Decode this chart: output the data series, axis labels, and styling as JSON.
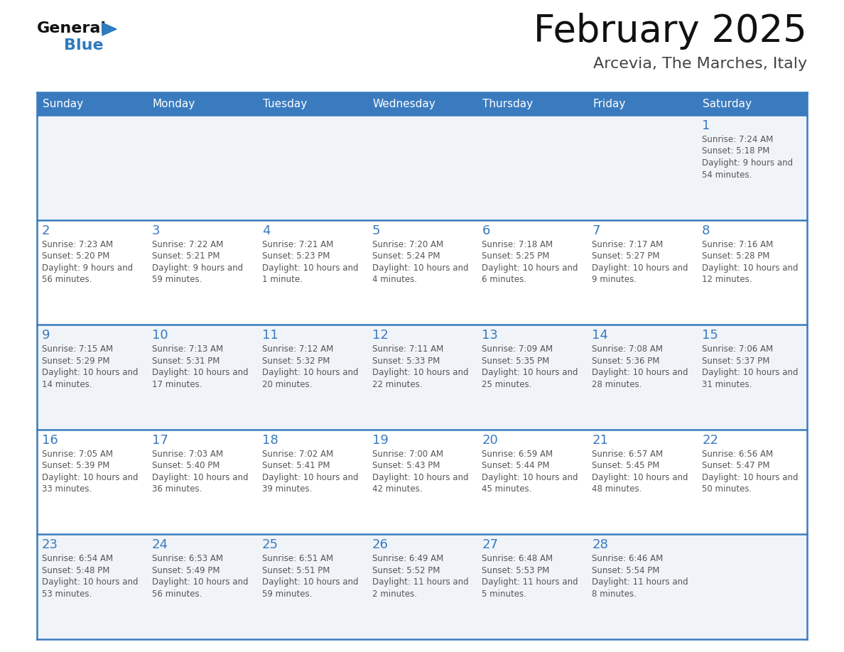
{
  "title": "February 2025",
  "subtitle": "Arcevia, The Marches, Italy",
  "days_of_week": [
    "Sunday",
    "Monday",
    "Tuesday",
    "Wednesday",
    "Thursday",
    "Friday",
    "Saturday"
  ],
  "header_bg_color": "#3a7bbf",
  "header_text_color": "#ffffff",
  "cell_bg_even": "#f0f4f8",
  "cell_bg_odd": "#ffffff",
  "line_color": "#3a7bbf",
  "day_number_color": "#3a7bbf",
  "info_text_color": "#555555",
  "title_color": "#111111",
  "subtitle_color": "#444444",
  "logo_general_color": "#111111",
  "logo_blue_color": "#2e7bbf",
  "calendar_data": [
    {
      "day": 1,
      "col": 6,
      "row": 0,
      "sunrise": "7:24 AM",
      "sunset": "5:18 PM",
      "daylight": "9 hours and 54 minutes."
    },
    {
      "day": 2,
      "col": 0,
      "row": 1,
      "sunrise": "7:23 AM",
      "sunset": "5:20 PM",
      "daylight": "9 hours and 56 minutes."
    },
    {
      "day": 3,
      "col": 1,
      "row": 1,
      "sunrise": "7:22 AM",
      "sunset": "5:21 PM",
      "daylight": "9 hours and 59 minutes."
    },
    {
      "day": 4,
      "col": 2,
      "row": 1,
      "sunrise": "7:21 AM",
      "sunset": "5:23 PM",
      "daylight": "10 hours and 1 minute."
    },
    {
      "day": 5,
      "col": 3,
      "row": 1,
      "sunrise": "7:20 AM",
      "sunset": "5:24 PM",
      "daylight": "10 hours and 4 minutes."
    },
    {
      "day": 6,
      "col": 4,
      "row": 1,
      "sunrise": "7:18 AM",
      "sunset": "5:25 PM",
      "daylight": "10 hours and 6 minutes."
    },
    {
      "day": 7,
      "col": 5,
      "row": 1,
      "sunrise": "7:17 AM",
      "sunset": "5:27 PM",
      "daylight": "10 hours and 9 minutes."
    },
    {
      "day": 8,
      "col": 6,
      "row": 1,
      "sunrise": "7:16 AM",
      "sunset": "5:28 PM",
      "daylight": "10 hours and 12 minutes."
    },
    {
      "day": 9,
      "col": 0,
      "row": 2,
      "sunrise": "7:15 AM",
      "sunset": "5:29 PM",
      "daylight": "10 hours and 14 minutes."
    },
    {
      "day": 10,
      "col": 1,
      "row": 2,
      "sunrise": "7:13 AM",
      "sunset": "5:31 PM",
      "daylight": "10 hours and 17 minutes."
    },
    {
      "day": 11,
      "col": 2,
      "row": 2,
      "sunrise": "7:12 AM",
      "sunset": "5:32 PM",
      "daylight": "10 hours and 20 minutes."
    },
    {
      "day": 12,
      "col": 3,
      "row": 2,
      "sunrise": "7:11 AM",
      "sunset": "5:33 PM",
      "daylight": "10 hours and 22 minutes."
    },
    {
      "day": 13,
      "col": 4,
      "row": 2,
      "sunrise": "7:09 AM",
      "sunset": "5:35 PM",
      "daylight": "10 hours and 25 minutes."
    },
    {
      "day": 14,
      "col": 5,
      "row": 2,
      "sunrise": "7:08 AM",
      "sunset": "5:36 PM",
      "daylight": "10 hours and 28 minutes."
    },
    {
      "day": 15,
      "col": 6,
      "row": 2,
      "sunrise": "7:06 AM",
      "sunset": "5:37 PM",
      "daylight": "10 hours and 31 minutes."
    },
    {
      "day": 16,
      "col": 0,
      "row": 3,
      "sunrise": "7:05 AM",
      "sunset": "5:39 PM",
      "daylight": "10 hours and 33 minutes."
    },
    {
      "day": 17,
      "col": 1,
      "row": 3,
      "sunrise": "7:03 AM",
      "sunset": "5:40 PM",
      "daylight": "10 hours and 36 minutes."
    },
    {
      "day": 18,
      "col": 2,
      "row": 3,
      "sunrise": "7:02 AM",
      "sunset": "5:41 PM",
      "daylight": "10 hours and 39 minutes."
    },
    {
      "day": 19,
      "col": 3,
      "row": 3,
      "sunrise": "7:00 AM",
      "sunset": "5:43 PM",
      "daylight": "10 hours and 42 minutes."
    },
    {
      "day": 20,
      "col": 4,
      "row": 3,
      "sunrise": "6:59 AM",
      "sunset": "5:44 PM",
      "daylight": "10 hours and 45 minutes."
    },
    {
      "day": 21,
      "col": 5,
      "row": 3,
      "sunrise": "6:57 AM",
      "sunset": "5:45 PM",
      "daylight": "10 hours and 48 minutes."
    },
    {
      "day": 22,
      "col": 6,
      "row": 3,
      "sunrise": "6:56 AM",
      "sunset": "5:47 PM",
      "daylight": "10 hours and 50 minutes."
    },
    {
      "day": 23,
      "col": 0,
      "row": 4,
      "sunrise": "6:54 AM",
      "sunset": "5:48 PM",
      "daylight": "10 hours and 53 minutes."
    },
    {
      "day": 24,
      "col": 1,
      "row": 4,
      "sunrise": "6:53 AM",
      "sunset": "5:49 PM",
      "daylight": "10 hours and 56 minutes."
    },
    {
      "day": 25,
      "col": 2,
      "row": 4,
      "sunrise": "6:51 AM",
      "sunset": "5:51 PM",
      "daylight": "10 hours and 59 minutes."
    },
    {
      "day": 26,
      "col": 3,
      "row": 4,
      "sunrise": "6:49 AM",
      "sunset": "5:52 PM",
      "daylight": "11 hours and 2 minutes."
    },
    {
      "day": 27,
      "col": 4,
      "row": 4,
      "sunrise": "6:48 AM",
      "sunset": "5:53 PM",
      "daylight": "11 hours and 5 minutes."
    },
    {
      "day": 28,
      "col": 5,
      "row": 4,
      "sunrise": "6:46 AM",
      "sunset": "5:54 PM",
      "daylight": "11 hours and 8 minutes."
    }
  ]
}
